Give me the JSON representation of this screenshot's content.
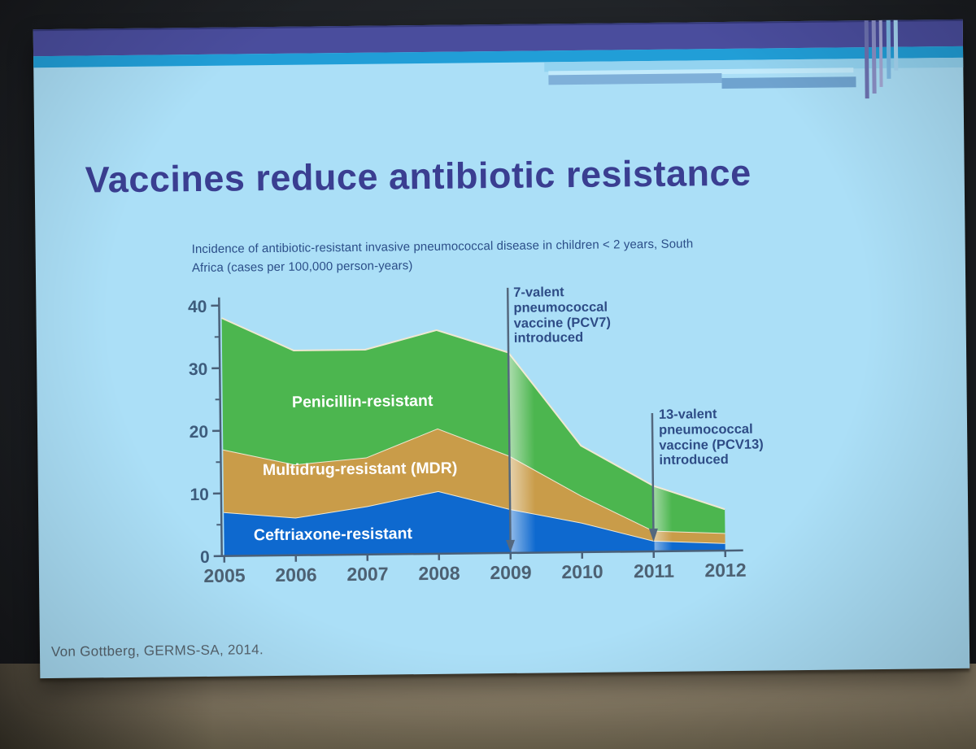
{
  "slide": {
    "title": "Vaccines reduce antibiotic resistance",
    "subtitle_line1": "Incidence of antibiotic-resistant invasive pneumococcal disease in children < 2 years, South",
    "subtitle_line2": "Africa (cases per 100,000 person-years)",
    "citation": "Von Gottberg, GERMS-SA, 2014."
  },
  "chart_data": {
    "type": "area",
    "stacked": true,
    "title": "Incidence of antibiotic-resistant invasive pneumococcal disease in children < 2 years, South Africa (cases per 100,000 person-years)",
    "x": [
      2005,
      2006,
      2007,
      2008,
      2009,
      2010,
      2011,
      2012
    ],
    "xlabel": "",
    "ylabel": "",
    "ylim": [
      0,
      40
    ],
    "yticks": [
      0,
      10,
      20,
      30,
      40
    ],
    "minor_yticks": [
      5,
      15,
      25,
      35
    ],
    "grid": false,
    "legend_position": "labels inside areas",
    "series": [
      {
        "name": "Ceftriaxone-resistant",
        "color": "#0e69cf",
        "values": [
          7.0,
          6.0,
          7.7,
          10.0,
          7.0,
          4.7,
          1.7,
          1.2
        ]
      },
      {
        "name": "Multidrug-resistant (MDR)",
        "color": "#c99c49",
        "values": [
          10.0,
          8.5,
          7.8,
          10.0,
          8.5,
          4.3,
          1.6,
          1.6
        ]
      },
      {
        "name": "Penicillin-resistant",
        "color": "#4cb64f",
        "values": [
          21.0,
          18.2,
          17.2,
          15.7,
          16.5,
          8.0,
          7.2,
          3.8
        ]
      }
    ],
    "cumulative_tops": {
      "ceftriaxone": [
        7.0,
        6.0,
        7.7,
        10.0,
        7.0,
        4.7,
        1.7,
        1.2
      ],
      "mdr": [
        17.0,
        14.5,
        15.5,
        20.0,
        15.5,
        9.0,
        3.3,
        2.8
      ],
      "penicillin": [
        38.0,
        32.7,
        32.7,
        35.7,
        32.0,
        17.0,
        10.5,
        6.6
      ]
    },
    "annotations": [
      {
        "x": 2009,
        "label": "7-valent pneumococcal vaccine (PCV7) introduced"
      },
      {
        "x": 2011,
        "label": "13-valent pneumococcal vaccine (PCV13) introduced"
      }
    ]
  },
  "colors": {
    "slide_background": "#abdff7",
    "header_bar_primary": "#4a4d9d",
    "header_bar_secondary": "#219ed7",
    "title_text": "#3a3e91",
    "subtitle_text": "#2b4e88",
    "axis_text": "#3d5c7c",
    "year_text": "#4d6173",
    "annotation_text": "#2e4c86",
    "arrow": "#54687e",
    "area_outline": "#efe8d2",
    "citation_text": "#57656f"
  }
}
